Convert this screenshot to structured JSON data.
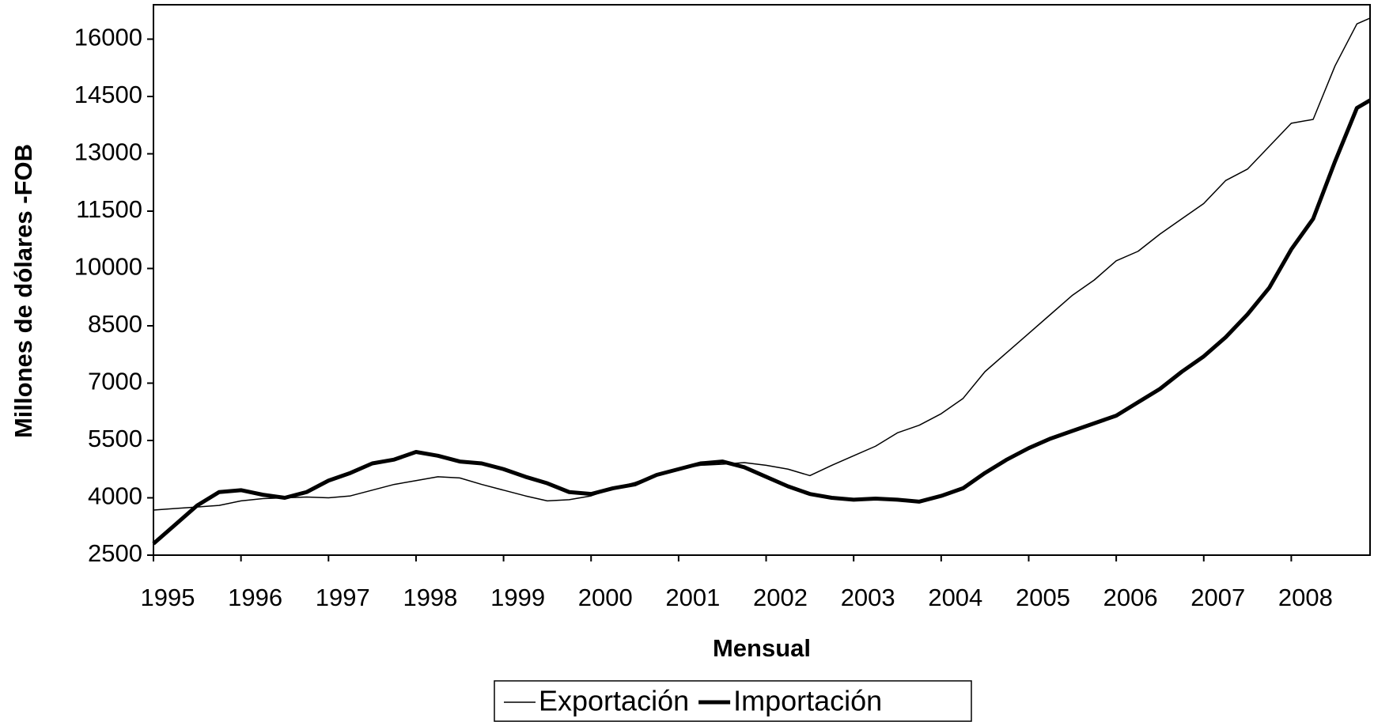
{
  "chart_data": {
    "type": "line",
    "y_label": "Millones de dólares -FOB",
    "x_label": "Mensual",
    "x": [
      1995,
      1995.25,
      1995.5,
      1995.75,
      1996,
      1996.25,
      1996.5,
      1996.75,
      1997,
      1997.25,
      1997.5,
      1997.75,
      1998,
      1998.25,
      1998.5,
      1998.75,
      1999,
      1999.25,
      1999.5,
      1999.75,
      2000,
      2000.25,
      2000.5,
      2000.75,
      2001,
      2001.25,
      2001.5,
      2001.75,
      2002,
      2002.25,
      2002.5,
      2002.75,
      2003,
      2003.25,
      2003.5,
      2003.75,
      2004,
      2004.25,
      2004.5,
      2004.75,
      2005,
      2005.25,
      2005.5,
      2005.75,
      2006,
      2006.25,
      2006.5,
      2006.75,
      2007,
      2007.25,
      2007.5,
      2007.75,
      2008,
      2008.25,
      2008.5,
      2008.75,
      2008.9
    ],
    "series": [
      {
        "name": "Exportación",
        "color": "#000000",
        "width": 1.5,
        "values": [
          3680,
          3720,
          3760,
          3800,
          3920,
          3980,
          4000,
          4020,
          4000,
          4050,
          4200,
          4350,
          4450,
          4550,
          4520,
          4350,
          4200,
          4050,
          3920,
          3950,
          4050,
          4250,
          4400,
          4600,
          4750,
          4850,
          4880,
          4920,
          4850,
          4750,
          4580,
          4850,
          5100,
          5350,
          5700,
          5900,
          6200,
          6600,
          7300,
          7800,
          8300,
          8800,
          9300,
          9700,
          10200,
          10450,
          10900,
          11300,
          11700,
          12300,
          12600,
          13200,
          13800,
          13900,
          15300,
          16400,
          16550
        ]
      },
      {
        "name": "Importación",
        "color": "#000000",
        "width": 5,
        "values": [
          2800,
          3300,
          3800,
          4150,
          4200,
          4080,
          4000,
          4150,
          4450,
          4650,
          4900,
          5000,
          5200,
          5100,
          4950,
          4900,
          4750,
          4550,
          4380,
          4150,
          4100,
          4250,
          4350,
          4600,
          4750,
          4900,
          4950,
          4800,
          4550,
          4300,
          4100,
          4000,
          3950,
          3980,
          3950,
          3900,
          4050,
          4250,
          4650,
          5000,
          5300,
          5550,
          5750,
          5950,
          6150,
          6500,
          6850,
          7300,
          7700,
          8200,
          8800,
          9500,
          10500,
          11300,
          12800,
          14200,
          14400
        ]
      }
    ],
    "xlim": [
      1995,
      2008.9
    ],
    "xticks": [
      1995,
      1996,
      1997,
      1998,
      1999,
      2000,
      2001,
      2002,
      2003,
      2004,
      2005,
      2006,
      2007,
      2008
    ],
    "ylim": [
      2500,
      16900
    ],
    "yticks": [
      2500,
      4000,
      5500,
      7000,
      8500,
      10000,
      11500,
      13000,
      14500,
      16000
    ],
    "grid": false
  }
}
